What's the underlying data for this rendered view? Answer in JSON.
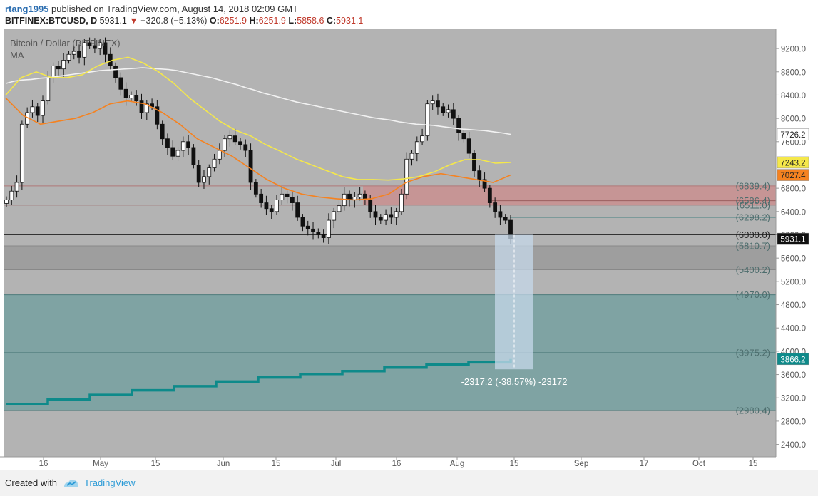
{
  "header": {
    "user": "rtang1995",
    "published": "published on TradingView.com, August 14, 2018 02:09 GMT",
    "symbol": "BITFINEX:BTCUSD, D",
    "last": "5931.1",
    "change": "−320.8 (−5.13%)",
    "o_label": "O:",
    "o": "6251.9",
    "h_label": "H:",
    "h": "6251.9",
    "l_label": "L:",
    "l": "5858.6",
    "c_label": "C:",
    "c": "5931.1"
  },
  "legend": {
    "series_title": "Bitcoin / Dollar (BITFINEX)",
    "indicator": "MA"
  },
  "colors": {
    "chart_bg": "#b3b3b3",
    "sma_white": "#f2f2f2",
    "sma_yellow": "#f5e84a",
    "sma_orange": "#f58220",
    "teal_line": "#0e8a8a",
    "red_zone": "#c98f8f",
    "teal_zone": "#7fa3a3",
    "grey_zone": "#9e9e9e",
    "measure_box": "#c6d8ea"
  },
  "chart_data": {
    "type": "line",
    "title": "Bitcoin / Dollar (BITFINEX)",
    "interval": "D",
    "ylim": [
      2200,
      9800
    ],
    "y_ticks": [
      "9200.0",
      "8800.0",
      "8400.0",
      "8000.0",
      "7600.0",
      "7200.0",
      "6800.0",
      "6400.0",
      "6000.0",
      "5600.0",
      "5200.0",
      "4800.0",
      "4400.0",
      "4000.0",
      "3600.0",
      "3200.0",
      "2800.0",
      "2400.0"
    ],
    "x_ticks": [
      "16",
      "May",
      "15",
      "Jun",
      "15",
      "Jul",
      "16",
      "Aug",
      "15",
      "Sep",
      "17",
      "Oct",
      "15"
    ],
    "levels": [
      {
        "label": "(6839.4)",
        "value": 6839.4
      },
      {
        "label": "(6586.4)",
        "value": 6586.4
      },
      {
        "label": "(6511.0)",
        "value": 6511.0
      },
      {
        "label": "(6298.2)",
        "value": 6298.2
      },
      {
        "label": "(6000.0)",
        "value": 6000.0
      },
      {
        "label": "(5810.7)",
        "value": 5810.7
      },
      {
        "label": "(5400.2)",
        "value": 5400.2
      },
      {
        "label": "(4970.0)",
        "value": 4970.0
      },
      {
        "label": "(3975.2)",
        "value": 3975.2
      },
      {
        "label": "(2980.4)",
        "value": 2980.4
      }
    ],
    "price_badges": [
      {
        "label": "7726.2",
        "value": 7726.2,
        "bg": "#ffffff",
        "fg": "#222222"
      },
      {
        "label": "7243.2",
        "value": 7243.2,
        "bg": "#f5e84a",
        "fg": "#222222"
      },
      {
        "label": "7027.4",
        "value": 7027.4,
        "bg": "#f58220",
        "fg": "#222222"
      },
      {
        "label": "5931.1",
        "value": 5931.1,
        "bg": "#111111",
        "fg": "#ffffff"
      },
      {
        "label": "3866.2",
        "value": 3866.2,
        "bg": "#0e8a8a",
        "fg": "#ffffff"
      }
    ],
    "measure_text": "-2317.2 (-38.57%) -23172",
    "closes": [
      6600,
      6750,
      6900,
      7900,
      8100,
      8200,
      8050,
      8300,
      8700,
      8900,
      8850,
      9000,
      9100,
      9150,
      9050,
      9300,
      9250,
      9200,
      9300,
      9100,
      8900,
      8700,
      8500,
      8350,
      8400,
      8300,
      8100,
      8250,
      8200,
      7900,
      7650,
      7500,
      7350,
      7450,
      7600,
      7500,
      7200,
      6900,
      7000,
      7150,
      7300,
      7450,
      7650,
      7700,
      7600,
      7550,
      7450,
      6900,
      6700,
      6550,
      6450,
      6400,
      6600,
      6700,
      6650,
      6550,
      6300,
      6150,
      6100,
      6050,
      6000,
      5950,
      6250,
      6400,
      6500,
      6700,
      6600,
      6650,
      6700,
      6600,
      6400,
      6300,
      6250,
      6350,
      6300,
      6400,
      6700,
      7300,
      7400,
      7600,
      7700,
      8250,
      8300,
      8200,
      8100,
      8150,
      8000,
      7750,
      7650,
      7400,
      7100,
      6950,
      6800,
      6550,
      6400,
      6300,
      6250,
      5931.1
    ],
    "series": [
      {
        "name": "",
        "values": [
          8600,
          8640,
          8660,
          8670,
          8690,
          8700,
          8720,
          8740,
          8760,
          8780,
          8800,
          8820,
          8830,
          8840,
          8850,
          8860,
          8870,
          8860,
          8850,
          8840,
          8820,
          8790,
          8760,
          8730,
          8700,
          8660,
          8620,
          8580,
          8530,
          8490,
          8440,
          8400,
          8360,
          8320,
          8280,
          8250,
          8220,
          8190,
          8160,
          8130,
          8100,
          8070,
          8040,
          8010,
          7990,
          7970,
          7940,
          7920,
          7900,
          7890,
          7880,
          7860,
          7840,
          7820,
          7810,
          7800,
          7790,
          7770,
          7750,
          7726.2
        ]
      },
      {
        "name": "",
        "values": [
          8400,
          8700,
          8800,
          8700,
          8700,
          8750,
          8900,
          9000,
          9050,
          8950,
          8800,
          8600,
          8350,
          8150,
          7950,
          7800,
          7700,
          7550,
          7430,
          7300,
          7200,
          7100,
          7000,
          6950,
          6950,
          6940,
          6960,
          7000,
          7080,
          7200,
          7290,
          7290,
          7230,
          7243.2
        ]
      },
      {
        "name": "",
        "values": [
          8350,
          8050,
          7900,
          7950,
          8000,
          8100,
          8250,
          8300,
          8250,
          8100,
          7900,
          7650,
          7500,
          7350,
          7150,
          6950,
          6800,
          6700,
          6650,
          6620,
          6600,
          6620,
          6700,
          6900,
          7000,
          7050,
          7000,
          6950,
          6900,
          7027.4
        ]
      },
      {
        "name": "",
        "values": [
          3090,
          3090,
          3170,
          3170,
          3250,
          3250,
          3330,
          3330,
          3400,
          3400,
          3480,
          3480,
          3550,
          3550,
          3610,
          3610,
          3660,
          3660,
          3720,
          3720,
          3770,
          3770,
          3810,
          3810,
          3866.2
        ]
      }
    ]
  },
  "footer": {
    "created": "Created with",
    "brand": "TradingView"
  }
}
